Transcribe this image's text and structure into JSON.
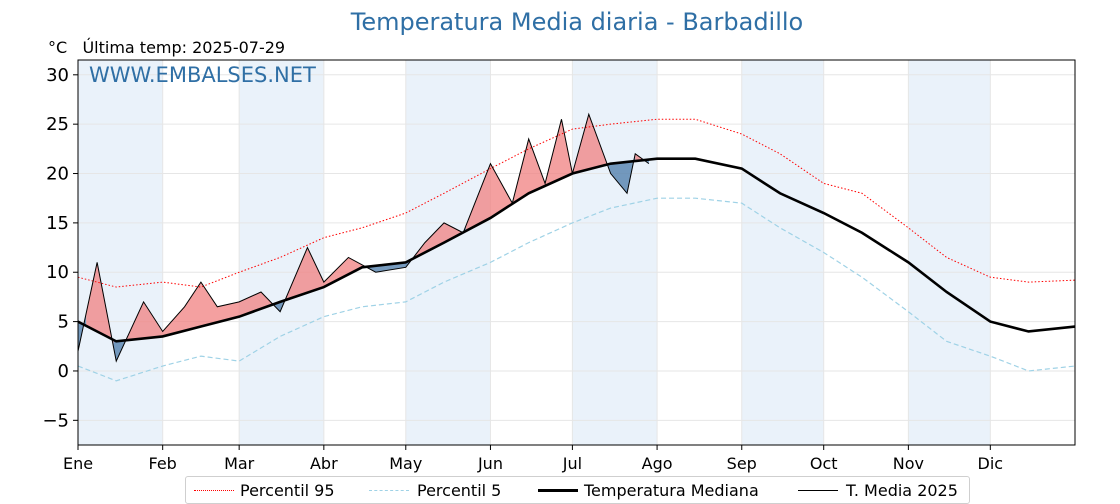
{
  "title": "Temperatura Media diaria - Barbadillo",
  "unit": "°C",
  "last_temp": "Última temp: 2025-07-29",
  "watermark": "WWW.EMBALSES.NET",
  "colors": {
    "p95": "#ff0000",
    "p5": "#9fd2e6",
    "median": "#000000",
    "current": "#000000",
    "above": "#f08080",
    "below": "#4a7aa8",
    "band": "#eaf2fa"
  },
  "chart_data": {
    "type": "line",
    "x_months": [
      "Ene",
      "Feb",
      "Mar",
      "Abr",
      "May",
      "Jun",
      "Jul",
      "Ago",
      "Sep",
      "Oct",
      "Nov",
      "Dic"
    ],
    "ylim": [
      -7.5,
      31.5
    ],
    "yticks": [
      -5,
      0,
      5,
      10,
      15,
      20,
      25,
      30
    ],
    "xlim": [
      1,
      366
    ],
    "grid": true,
    "legend_position": "bottom",
    "series": [
      {
        "name": "Percentil 95",
        "style": "dotted",
        "color": "#ff0000",
        "x": [
          1,
          15,
          32,
          46,
          60,
          75,
          91,
          105,
          121,
          135,
          152,
          166,
          182,
          196,
          213,
          227,
          244,
          258,
          274,
          288,
          305,
          319,
          335,
          349,
          366
        ],
        "values": [
          9.5,
          8.5,
          9.0,
          8.5,
          10.0,
          11.5,
          13.5,
          14.5,
          16.0,
          18.0,
          20.5,
          22.5,
          24.5,
          25.0,
          25.5,
          25.5,
          24.0,
          22.0,
          19.0,
          18.0,
          14.5,
          11.5,
          9.5,
          9.0,
          9.2
        ]
      },
      {
        "name": "Percentil 5",
        "style": "dashed",
        "color": "#9fd2e6",
        "x": [
          1,
          15,
          32,
          46,
          60,
          75,
          91,
          105,
          121,
          135,
          152,
          166,
          182,
          196,
          213,
          227,
          244,
          258,
          274,
          288,
          305,
          319,
          335,
          349,
          366
        ],
        "values": [
          0.5,
          -1.0,
          0.5,
          1.5,
          1.0,
          3.5,
          5.5,
          6.5,
          7.0,
          9.0,
          11.0,
          13.0,
          15.0,
          16.5,
          17.5,
          17.5,
          17.0,
          14.5,
          12.0,
          9.5,
          6.0,
          3.0,
          1.5,
          0.0,
          0.5
        ]
      },
      {
        "name": "Temperatura Mediana",
        "style": "solid-thick",
        "color": "#000000",
        "x": [
          1,
          15,
          32,
          46,
          60,
          75,
          91,
          105,
          121,
          135,
          152,
          166,
          182,
          196,
          213,
          227,
          244,
          258,
          274,
          288,
          305,
          319,
          335,
          349,
          366
        ],
        "values": [
          5.0,
          3.0,
          3.5,
          4.5,
          5.5,
          7.0,
          8.5,
          10.5,
          11.0,
          13.0,
          15.5,
          18.0,
          20.0,
          21.0,
          21.5,
          21.5,
          20.5,
          18.0,
          16.0,
          14.0,
          11.0,
          8.0,
          5.0,
          4.0,
          4.5
        ]
      },
      {
        "name": "T. Media 2025",
        "style": "solid-thin",
        "color": "#000000",
        "x": [
          1,
          8,
          15,
          25,
          32,
          40,
          46,
          52,
          60,
          68,
          75,
          85,
          91,
          100,
          110,
          121,
          128,
          135,
          142,
          152,
          160,
          166,
          172,
          178,
          182,
          188,
          196,
          202,
          205,
          210
        ],
        "values": [
          2.0,
          11.0,
          1.0,
          7.0,
          4.0,
          6.5,
          9.0,
          6.5,
          7.0,
          8.0,
          6.0,
          12.5,
          9.0,
          11.5,
          10.0,
          10.5,
          13.0,
          15.0,
          14.0,
          21.0,
          17.0,
          23.5,
          19.0,
          25.5,
          20.0,
          26.0,
          20.0,
          18.0,
          22.0,
          21.0
        ]
      }
    ]
  },
  "legend": {
    "p95": "Percentil 95",
    "p5": "Percentil 5",
    "median": "Temperatura Mediana",
    "current": "T. Media 2025"
  }
}
